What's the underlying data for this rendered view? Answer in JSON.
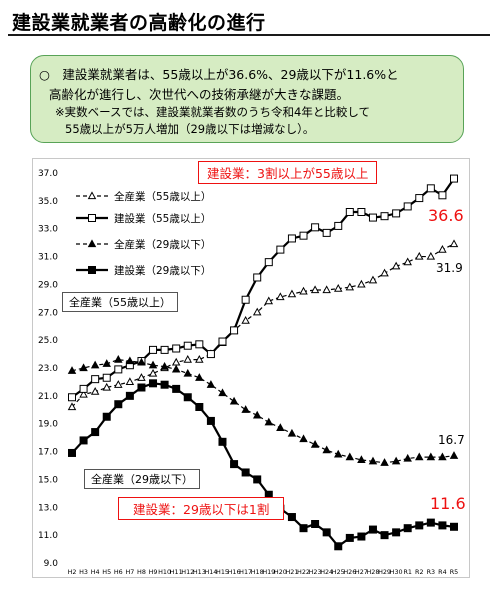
{
  "title": "建設業就業者の高齢化の進行",
  "summary": {
    "line1": "○　建設業就業者は、55歳以上が36.6%、29歳以下が11.6%と",
    "line2": "高齢化が進行し、次世代への技術承継が大きな課題。",
    "note1": "※実数ベースでは、建設業就業者数のうち令和4年と比較して",
    "note2": "55歳以上が5万人増加（29歳以下は増減なし）。"
  },
  "chart_data": {
    "type": "line",
    "categories": [
      "H2",
      "H3",
      "H4",
      "H5",
      "H6",
      "H7",
      "H8",
      "H9",
      "H10",
      "H11",
      "H12",
      "H13",
      "H14",
      "H15",
      "H16",
      "H17",
      "H18",
      "H19",
      "H20",
      "H21",
      "H22",
      "H23",
      "H24",
      "H25",
      "H26",
      "H27",
      "H28",
      "H29",
      "H30",
      "R1",
      "R2",
      "R3",
      "R4",
      "R5"
    ],
    "ylim": [
      9.0,
      37.0
    ],
    "yticks": [
      "9.0",
      "11.0",
      "13.0",
      "15.0",
      "17.0",
      "19.0",
      "21.0",
      "23.0",
      "25.0",
      "27.0",
      "29.0",
      "31.0",
      "33.0",
      "35.0",
      "37.0"
    ],
    "series": [
      {
        "name": "全産業（55歳以上）",
        "color": "#000000",
        "marker": "triangle-open",
        "dashed": true,
        "values": [
          20.2,
          21.1,
          21.3,
          21.6,
          21.8,
          22.0,
          22.3,
          22.6,
          23.0,
          23.4,
          23.6,
          23.6,
          24.0,
          24.8,
          25.7,
          26.4,
          27.0,
          27.8,
          28.1,
          28.3,
          28.5,
          28.6,
          28.6,
          28.7,
          28.8,
          29.0,
          29.3,
          29.8,
          30.3,
          30.6,
          31.0,
          31.0,
          31.5,
          31.9
        ]
      },
      {
        "name": "建設業（55歳以上）",
        "color": "#000000",
        "marker": "square-open",
        "dashed": false,
        "values": [
          20.9,
          21.5,
          22.2,
          22.3,
          22.9,
          23.2,
          23.5,
          24.3,
          24.3,
          24.4,
          24.6,
          24.7,
          24.0,
          24.9,
          25.7,
          27.9,
          29.5,
          30.6,
          31.5,
          32.3,
          32.5,
          33.1,
          32.7,
          33.2,
          34.2,
          34.2,
          33.8,
          33.9,
          34.1,
          34.6,
          35.2,
          35.9,
          35.4,
          36.6
        ]
      },
      {
        "name": "全産業（29歳以下）",
        "color": "#000000",
        "marker": "triangle-filled",
        "dashed": true,
        "values": [
          22.8,
          23.0,
          23.2,
          23.3,
          23.6,
          23.5,
          23.4,
          23.2,
          23.1,
          22.9,
          22.6,
          22.3,
          21.8,
          21.2,
          20.6,
          20.0,
          19.6,
          19.1,
          18.7,
          18.3,
          17.9,
          17.5,
          17.1,
          16.8,
          16.6,
          16.4,
          16.3,
          16.2,
          16.3,
          16.5,
          16.6,
          16.6,
          16.6,
          16.7
        ]
      },
      {
        "name": "建設業（29歳以下）",
        "color": "#000000",
        "marker": "square-filled",
        "dashed": false,
        "values": [
          16.9,
          17.8,
          18.4,
          19.5,
          20.4,
          21.0,
          21.6,
          21.9,
          21.8,
          21.5,
          20.9,
          20.2,
          19.2,
          17.7,
          16.1,
          15.5,
          15.0,
          13.9,
          12.9,
          12.3,
          11.5,
          11.8,
          11.2,
          10.2,
          10.8,
          10.9,
          11.4,
          11.0,
          11.2,
          11.5,
          11.7,
          11.9,
          11.7,
          11.6
        ]
      }
    ],
    "end_labels": {
      "s1": "31.9",
      "s2": "36.6",
      "s3": "16.7",
      "s4": "11.6"
    },
    "annotations": {
      "top_red": "建設業：3割以上が55歳以上",
      "bottom_red": "建設業：29歳以下は1割",
      "callout_55": "全産業（55歳以上）",
      "callout_29": "全産業（29歳以下）"
    },
    "accent_red": "#ee1111"
  }
}
